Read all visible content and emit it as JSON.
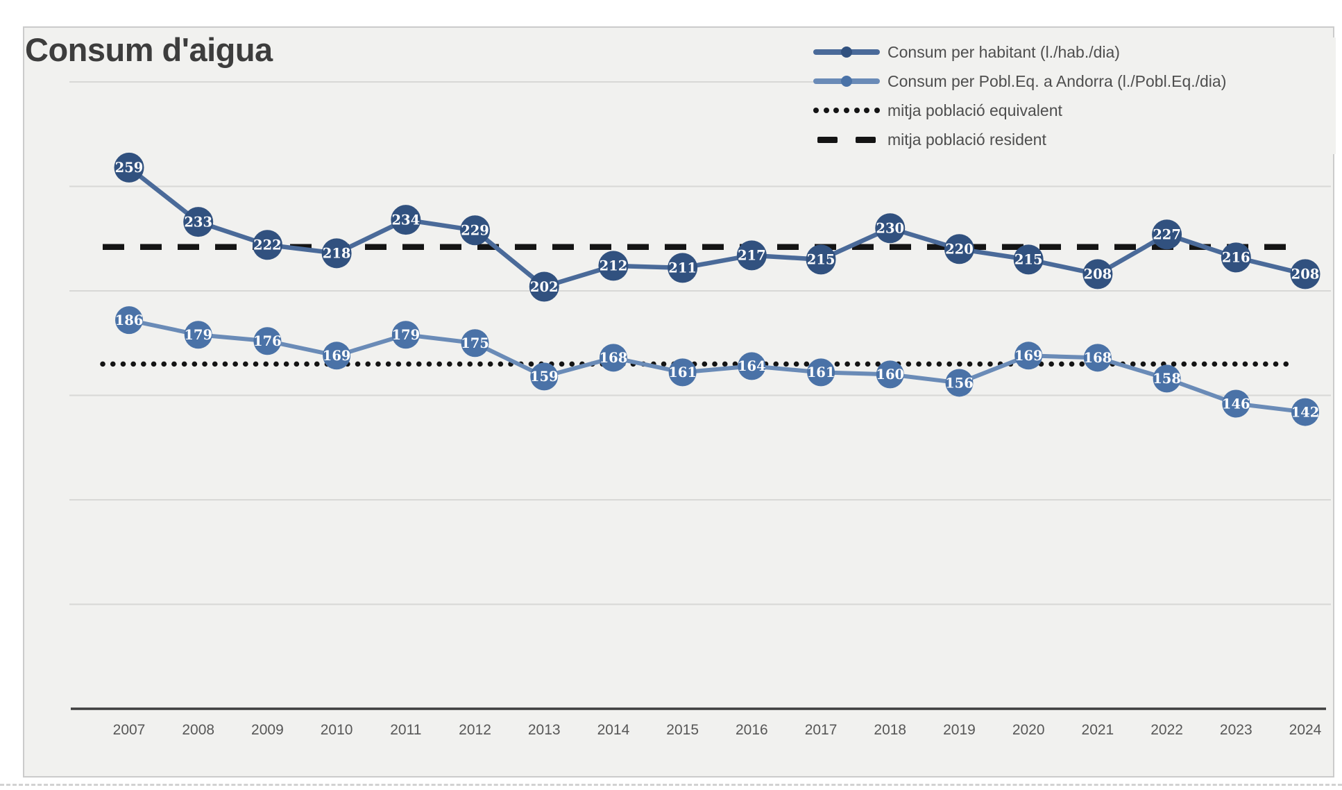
{
  "title": "Consum d'aigua",
  "legend": {
    "items": [
      {
        "label": "Consum per habitant (l./hab./dia)",
        "swatch": "line-marker",
        "line_color": "#4a6a99",
        "marker_color": "#31517f"
      },
      {
        "label": "Consum per Pobl.Eq. a Andorra (l./Pobl.Eq./dia)",
        "swatch": "line-marker",
        "line_color": "#6a8bb7",
        "marker_color": "#4a72a7"
      },
      {
        "label": "mitja població equivalent",
        "swatch": "dotted",
        "line_color": "#141414"
      },
      {
        "label": "mitja població resident",
        "swatch": "dashed",
        "line_color": "#141414"
      }
    ]
  },
  "chart_data": {
    "type": "line",
    "title": "Consum d'aigua",
    "categories": [
      "2007",
      "2008",
      "2009",
      "2010",
      "2011",
      "2012",
      "2013",
      "2014",
      "2015",
      "2016",
      "2017",
      "2018",
      "2019",
      "2020",
      "2021",
      "2022",
      "2023",
      "2024"
    ],
    "series": [
      {
        "name": "Consum per habitant (l./hab./dia)",
        "values": [
          259,
          233,
          222,
          218,
          234,
          229,
          202,
          212,
          211,
          217,
          215,
          230,
          220,
          215,
          208,
          227,
          216,
          208
        ],
        "line_color": "#4a6a99",
        "marker_color": "#31517f",
        "label_color": "#ffffff"
      },
      {
        "name": "Consum per Pobl.Eq. a Andorra (l./Pobl.Eq./dia)",
        "values": [
          186,
          179,
          176,
          169,
          179,
          175,
          159,
          168,
          161,
          164,
          161,
          160,
          156,
          169,
          168,
          158,
          146,
          142
        ],
        "line_color": "#6a8bb7",
        "marker_color": "#4a72a7",
        "label_color": "#ffffff"
      }
    ],
    "reference_lines": [
      {
        "name": "mitja població equivalent",
        "value": 165,
        "style": "dotted",
        "color": "#141414"
      },
      {
        "name": "mitja població resident",
        "value": 221,
        "style": "dashed",
        "color": "#141414"
      }
    ],
    "xlabel": "",
    "ylabel": "",
    "ylim": [
      0,
      300
    ],
    "gridline_step": 50,
    "grid": true,
    "legend_position": "top-right",
    "data_labels": true,
    "axis_color": "#3f3f3f",
    "gridline_color": "#d8d8d6",
    "tick_label_color": "#575757"
  }
}
